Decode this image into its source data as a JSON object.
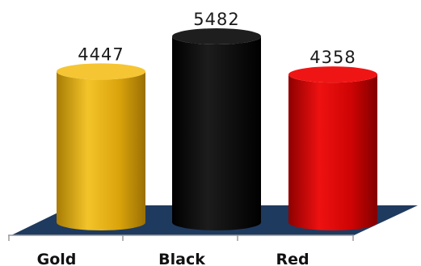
{
  "chart_data": {
    "type": "bar",
    "style": "3d-cylinder",
    "categories": [
      "Gold",
      "Black",
      "Red"
    ],
    "values": [
      4447,
      5482,
      4358
    ],
    "colors": [
      "#e2aa10",
      "#0a0a0a",
      "#d00606"
    ],
    "floor_color": "#1f3a5f",
    "title": "",
    "xlabel": "",
    "ylabel": "",
    "ylim": [
      0,
      5482
    ],
    "grid": false,
    "legend": "none",
    "data_labels": [
      "4447",
      "5482",
      "4358"
    ]
  }
}
